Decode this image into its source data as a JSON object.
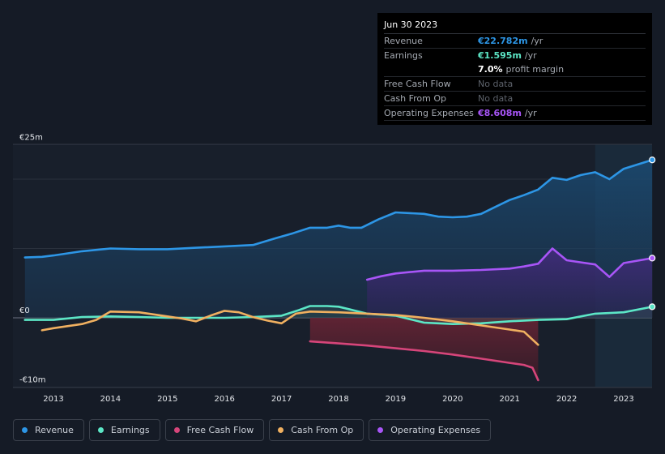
{
  "tooltip": {
    "date": "Jun 30 2023",
    "revenue_label": "Revenue",
    "revenue_value": "€22.782m",
    "earnings_label": "Earnings",
    "earnings_value": "€1.595m",
    "profit_margin_value": "7.0%",
    "profit_margin_text": "profit margin",
    "fcf_label": "Free Cash Flow",
    "cfo_label": "Cash From Op",
    "opex_label": "Operating Expenses",
    "opex_value": "€8.608m",
    "per_year": "/yr",
    "no_data": "No data"
  },
  "legend": [
    {
      "label": "Revenue",
      "color": "#2d96e6"
    },
    {
      "label": "Earnings",
      "color": "#5ce6c6"
    },
    {
      "label": "Free Cash Flow",
      "color": "#d6457a"
    },
    {
      "label": "Cash From Op",
      "color": "#f0b060"
    },
    {
      "label": "Operating Expenses",
      "color": "#a855f7"
    }
  ],
  "chart_data": {
    "type": "area",
    "title": "",
    "y_tick_labels": [
      "€25m",
      "€0",
      "-€10m"
    ],
    "ylim": [
      -10,
      25
    ],
    "xlim": [
      2012.6,
      2023.5
    ],
    "x_tick_labels": [
      "2013",
      "2014",
      "2015",
      "2016",
      "2017",
      "2018",
      "2019",
      "2020",
      "2021",
      "2022",
      "2023"
    ],
    "x_ticks": [
      2013,
      2014,
      2015,
      2016,
      2017,
      2018,
      2019,
      2020,
      2021,
      2022,
      2023
    ],
    "highlight_from": 2022.5,
    "series": [
      {
        "name": "Revenue",
        "color": "#2d96e6",
        "x": [
          2012.5,
          2012.8,
          2013.0,
          2013.5,
          2014.0,
          2014.5,
          2015.0,
          2015.5,
          2016.0,
          2016.5,
          2016.9,
          2017.2,
          2017.5,
          2017.8,
          2018.0,
          2018.2,
          2018.4,
          2018.7,
          2019.0,
          2019.5,
          2019.75,
          2020.0,
          2020.25,
          2020.5,
          2020.75,
          2021.0,
          2021.25,
          2021.5,
          2021.75,
          2022.0,
          2022.25,
          2022.5,
          2022.75,
          2023.0,
          2023.5
        ],
        "values": [
          8.7,
          8.8,
          9.0,
          9.6,
          10.0,
          9.9,
          9.9,
          10.1,
          10.3,
          10.5,
          11.5,
          12.2,
          13.0,
          13.0,
          13.3,
          13.0,
          13.0,
          14.2,
          15.2,
          15.0,
          14.6,
          14.5,
          14.6,
          15.0,
          16.0,
          17.0,
          17.7,
          18.5,
          20.2,
          19.9,
          20.6,
          21.0,
          20.0,
          21.5,
          22.782
        ]
      },
      {
        "name": "Earnings",
        "color": "#5ce6c6",
        "x": [
          2012.5,
          2013.0,
          2013.5,
          2014.0,
          2014.5,
          2015.0,
          2015.5,
          2016.0,
          2016.5,
          2017.0,
          2017.3,
          2017.5,
          2017.8,
          2018.0,
          2018.2,
          2018.5,
          2019.0,
          2019.25,
          2019.5,
          2019.75,
          2020.0,
          2020.5,
          2021.0,
          2021.5,
          2022.0,
          2022.5,
          2023.0,
          2023.5
        ],
        "values": [
          -0.3,
          -0.3,
          0.1,
          0.2,
          0.1,
          0.0,
          0.0,
          0.0,
          0.1,
          0.3,
          1.1,
          1.7,
          1.7,
          1.6,
          1.2,
          0.6,
          0.3,
          -0.2,
          -0.7,
          -0.8,
          -0.9,
          -0.8,
          -0.5,
          -0.3,
          -0.2,
          0.6,
          0.8,
          1.595
        ]
      },
      {
        "name": "Free Cash Flow",
        "color": "#d6457a",
        "x": [
          2017.5,
          2018.0,
          2018.5,
          2019.0,
          2019.5,
          2020.0,
          2020.5,
          2021.0,
          2021.25,
          2021.4,
          2021.5
        ],
        "values": [
          -3.4,
          -3.7,
          -4.0,
          -4.4,
          -4.8,
          -5.3,
          -5.9,
          -6.5,
          -6.8,
          -7.2,
          -9.0
        ]
      },
      {
        "name": "Cash From Op",
        "color": "#f0b060",
        "x": [
          2012.8,
          2013.0,
          2013.5,
          2013.75,
          2014.0,
          2014.5,
          2015.0,
          2015.25,
          2015.5,
          2015.75,
          2016.0,
          2016.25,
          2016.5,
          2016.75,
          2017.0,
          2017.25,
          2017.5,
          2018.0,
          2018.5,
          2019.0,
          2019.5,
          2020.0,
          2020.5,
          2021.0,
          2021.25,
          2021.5
        ],
        "values": [
          -1.8,
          -1.5,
          -0.9,
          -0.3,
          0.9,
          0.8,
          0.2,
          -0.1,
          -0.5,
          0.3,
          1.0,
          0.8,
          0.1,
          -0.4,
          -0.8,
          0.6,
          0.9,
          0.8,
          0.6,
          0.4,
          0.0,
          -0.5,
          -1.1,
          -1.7,
          -2.0,
          -3.9
        ]
      },
      {
        "name": "Operating Expenses",
        "color": "#a855f7",
        "x": [
          2018.5,
          2018.75,
          2019.0,
          2019.25,
          2019.5,
          2020.0,
          2020.5,
          2021.0,
          2021.25,
          2021.5,
          2021.75,
          2022.0,
          2022.25,
          2022.5,
          2022.75,
          2023.0,
          2023.5
        ],
        "values": [
          5.5,
          6.0,
          6.4,
          6.6,
          6.8,
          6.8,
          6.9,
          7.1,
          7.4,
          7.8,
          10.0,
          8.3,
          8.0,
          7.7,
          5.9,
          7.9,
          8.608
        ]
      }
    ]
  }
}
